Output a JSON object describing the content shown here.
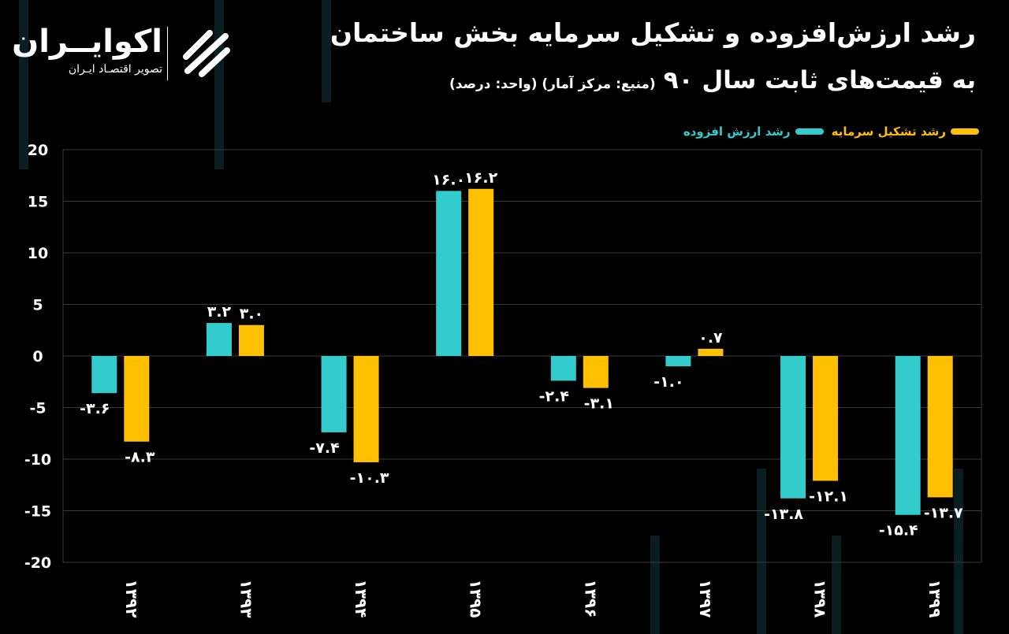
{
  "header": {
    "title_line1": "رشد ارزش‌افزوده و تشکیل سرمایه بخش ساختمان",
    "title_line2": "به قیمت‌های ثابت سال ۹۰",
    "source_note": "(منبع: مرکز آمار)  (واحد: درصد)"
  },
  "logo": {
    "name": "اکوایــران",
    "tagline": "تصویر اقتصـاد ایـران"
  },
  "colors": {
    "value_added": "#33cccc",
    "capital_formation": "#ffc000",
    "background": "#000000",
    "grid": "#3a3a3a"
  },
  "chart_data": {
    "type": "bar",
    "categories": [
      "۱۳۹۲",
      "۱۳۹۳",
      "۱۳۹۴",
      "۱۳۹۵",
      "۱۳۹۶",
      "۱۳۹۷",
      "۱۳۹۸",
      "۱۳۹۹"
    ],
    "series": [
      {
        "name": "رشد ارزش افزوده",
        "values": [
          -3.6,
          3.2,
          -7.4,
          16.0,
          -2.4,
          -1.0,
          -13.8,
          -15.4
        ],
        "labels": [
          "-۳.۶",
          "۳.۲",
          "-۷.۴",
          "۱۶.۰",
          "-۲.۴",
          "-۱.۰",
          "-۱۳.۸",
          "-۱۵.۴"
        ]
      },
      {
        "name": "رشد تشکیل سرمایه",
        "values": [
          -8.3,
          3.0,
          -10.3,
          16.2,
          -3.1,
          0.7,
          -12.1,
          -13.7
        ],
        "labels": [
          "-۸.۳",
          "۳.۰",
          "-۱۰.۳",
          "۱۶.۲",
          "-۳.۱",
          "۰.۷",
          "-۱۲.۱",
          "-۱۳.۷"
        ]
      }
    ],
    "yticks": [
      "20",
      "15",
      "10",
      "5",
      "0",
      "-5",
      "-10",
      "-15",
      "-20"
    ],
    "ylim": [
      -20,
      20
    ],
    "grid": true,
    "legend": "top-right"
  }
}
